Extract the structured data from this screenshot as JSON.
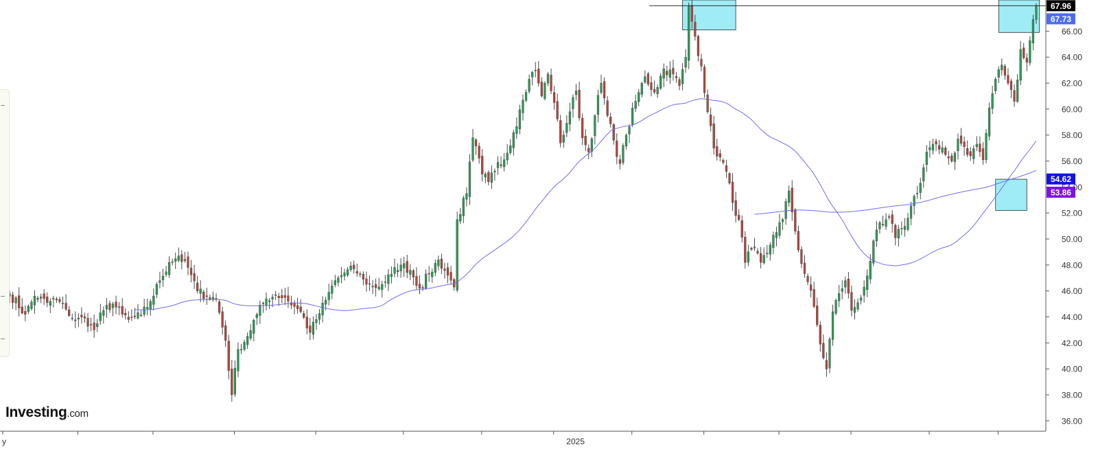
{
  "brand": {
    "name": "Investing",
    "suffix": ".com"
  },
  "colors": {
    "up": "#2c9a55",
    "down": "#b5453b",
    "ma_line": "#6f6cf0",
    "hline": "#111111",
    "highlight_fill": "#8ee9f4",
    "highlight_stroke": "#2b2b2b",
    "badge_last": "#000000",
    "badge_prev": "#4a6cf5",
    "badge_ma_fast": "#1212e8",
    "badge_ma_slow": "#7b12e8"
  },
  "x_axis": {
    "labels": [
      {
        "text": "y",
        "index": 0
      },
      {
        "text": "2025",
        "index": 183
      }
    ]
  },
  "price_badges": [
    {
      "id": "last",
      "label": "67.96",
      "value": 67.96,
      "color_key": "badge_last"
    },
    {
      "id": "prev",
      "label": "67.73",
      "value": 66.95,
      "color_key": "badge_prev"
    },
    {
      "id": "ma-fast",
      "label": "54.62",
      "value": 54.62,
      "color_key": "badge_ma_fast"
    },
    {
      "id": "ma-slow",
      "label": "53.86",
      "value": 53.6,
      "color_key": "badge_ma_slow"
    }
  ],
  "chart_data": {
    "type": "candlestick",
    "title": "",
    "y_axis": {
      "ticks": [
        "36.00",
        "38.00",
        "40.00",
        "42.00",
        "44.00",
        "46.00",
        "48.00",
        "50.00",
        "52.00",
        "54.00",
        "56.00",
        "58.00",
        "60.00",
        "62.00",
        "64.00",
        "66.00"
      ],
      "ylim": [
        35.2,
        68.4
      ],
      "side": "right"
    },
    "x_axis": {
      "labels": [
        "y",
        "2025"
      ]
    },
    "grid": false,
    "horizontal_line": {
      "value": 67.96
    },
    "highlight_boxes": [
      {
        "from_index": 215,
        "to_index": 232,
        "ymin": 66.1,
        "ymax": 68.4
      },
      {
        "from_index": 316,
        "to_index": 329,
        "ymin": 65.9,
        "ymax": 68.4
      },
      {
        "from_index": 315,
        "to_index": 325,
        "ymin": 52.2,
        "ymax": 54.6
      }
    ],
    "anchors": [
      [
        0,
        45.8
      ],
      [
        5,
        44.2
      ],
      [
        8,
        45.6
      ],
      [
        12,
        45.1
      ],
      [
        15,
        45.3
      ],
      [
        18,
        44.6
      ],
      [
        21,
        43.7
      ],
      [
        24,
        43.9
      ],
      [
        27,
        43.0
      ],
      [
        30,
        44.5
      ],
      [
        33,
        45.0
      ],
      [
        36,
        44.2
      ],
      [
        38,
        43.8
      ],
      [
        42,
        44.1
      ],
      [
        45,
        45.2
      ],
      [
        48,
        46.8
      ],
      [
        51,
        48.2
      ],
      [
        54,
        48.7
      ],
      [
        57,
        47.8
      ],
      [
        60,
        46.0
      ],
      [
        63,
        45.6
      ],
      [
        66,
        45.4
      ],
      [
        69,
        42.2
      ],
      [
        71,
        38.0
      ],
      [
        73,
        41.5
      ],
      [
        76,
        42.5
      ],
      [
        79,
        44.2
      ],
      [
        82,
        45.4
      ],
      [
        85,
        45.7
      ],
      [
        88,
        45.5
      ],
      [
        91,
        44.8
      ],
      [
        93,
        44.4
      ],
      [
        96,
        42.8
      ],
      [
        98,
        43.8
      ],
      [
        101,
        45.3
      ],
      [
        104,
        46.8
      ],
      [
        107,
        47.4
      ],
      [
        110,
        47.7
      ],
      [
        113,
        46.9
      ],
      [
        116,
        46.3
      ],
      [
        119,
        46.5
      ],
      [
        122,
        47.3
      ],
      [
        125,
        48.0
      ],
      [
        128,
        47.6
      ],
      [
        131,
        46.2
      ],
      [
        134,
        47.3
      ],
      [
        137,
        48.4
      ],
      [
        140,
        47.2
      ],
      [
        142,
        46.3
      ],
      [
        143,
        51.5
      ],
      [
        146,
        53.5
      ],
      [
        148,
        57.8
      ],
      [
        151,
        55.0
      ],
      [
        153,
        54.4
      ],
      [
        156,
        55.9
      ],
      [
        158,
        56.1
      ],
      [
        161,
        58.2
      ],
      [
        164,
        60.7
      ],
      [
        166,
        62.3
      ],
      [
        168,
        63.0
      ],
      [
        170,
        61.0
      ],
      [
        172,
        62.7
      ],
      [
        174,
        60.5
      ],
      [
        176,
        57.4
      ],
      [
        179,
        59.8
      ],
      [
        181,
        61.4
      ],
      [
        183,
        57.8
      ],
      [
        185,
        56.7
      ],
      [
        187,
        59.5
      ],
      [
        189,
        62.0
      ],
      [
        191,
        59.5
      ],
      [
        193,
        57.6
      ],
      [
        195,
        55.8
      ],
      [
        197,
        58.0
      ],
      [
        200,
        60.6
      ],
      [
        203,
        62.5
      ],
      [
        206,
        61.3
      ],
      [
        209,
        63.1
      ],
      [
        212,
        62.7
      ],
      [
        214,
        61.8
      ],
      [
        216,
        64.0
      ],
      [
        217,
        67.9
      ],
      [
        219,
        65.6
      ],
      [
        221,
        63.3
      ],
      [
        223,
        59.8
      ],
      [
        225,
        57.0
      ],
      [
        227,
        56.3
      ],
      [
        229,
        55.2
      ],
      [
        231,
        52.8
      ],
      [
        233,
        51.5
      ],
      [
        235,
        48.2
      ],
      [
        237,
        49.3
      ],
      [
        240,
        48.2
      ],
      [
        242,
        48.9
      ],
      [
        244,
        50.3
      ],
      [
        247,
        51.5
      ],
      [
        249,
        53.7
      ],
      [
        251,
        50.6
      ],
      [
        253,
        48.1
      ],
      [
        255,
        46.7
      ],
      [
        257,
        44.8
      ],
      [
        259,
        41.9
      ],
      [
        261,
        40.0
      ],
      [
        263,
        44.4
      ],
      [
        265,
        45.8
      ],
      [
        267,
        46.8
      ],
      [
        269,
        44.5
      ],
      [
        271,
        45.1
      ],
      [
        273,
        46.3
      ],
      [
        275,
        48.3
      ],
      [
        277,
        50.7
      ],
      [
        279,
        51.1
      ],
      [
        281,
        51.7
      ],
      [
        283,
        50.1
      ],
      [
        285,
        50.8
      ],
      [
        287,
        51.6
      ],
      [
        289,
        53.3
      ],
      [
        291,
        54.3
      ],
      [
        293,
        56.7
      ],
      [
        295,
        57.3
      ],
      [
        297,
        56.9
      ],
      [
        299,
        56.5
      ],
      [
        301,
        56.0
      ],
      [
        303,
        57.7
      ],
      [
        305,
        57.1
      ],
      [
        307,
        56.4
      ],
      [
        309,
        57.3
      ],
      [
        311,
        56.1
      ],
      [
        313,
        60.1
      ],
      [
        315,
        62.3
      ],
      [
        317,
        63.4
      ],
      [
        319,
        62.0
      ],
      [
        321,
        60.6
      ],
      [
        323,
        64.6
      ],
      [
        325,
        63.6
      ],
      [
        327,
        66.9
      ],
      [
        328,
        67.96
      ]
    ],
    "volatility": 0.75,
    "seed": 7,
    "sma_fast": {
      "period": 50,
      "label": "54.62"
    },
    "sma_slow": {
      "period": 200,
      "label": "53.86"
    }
  }
}
